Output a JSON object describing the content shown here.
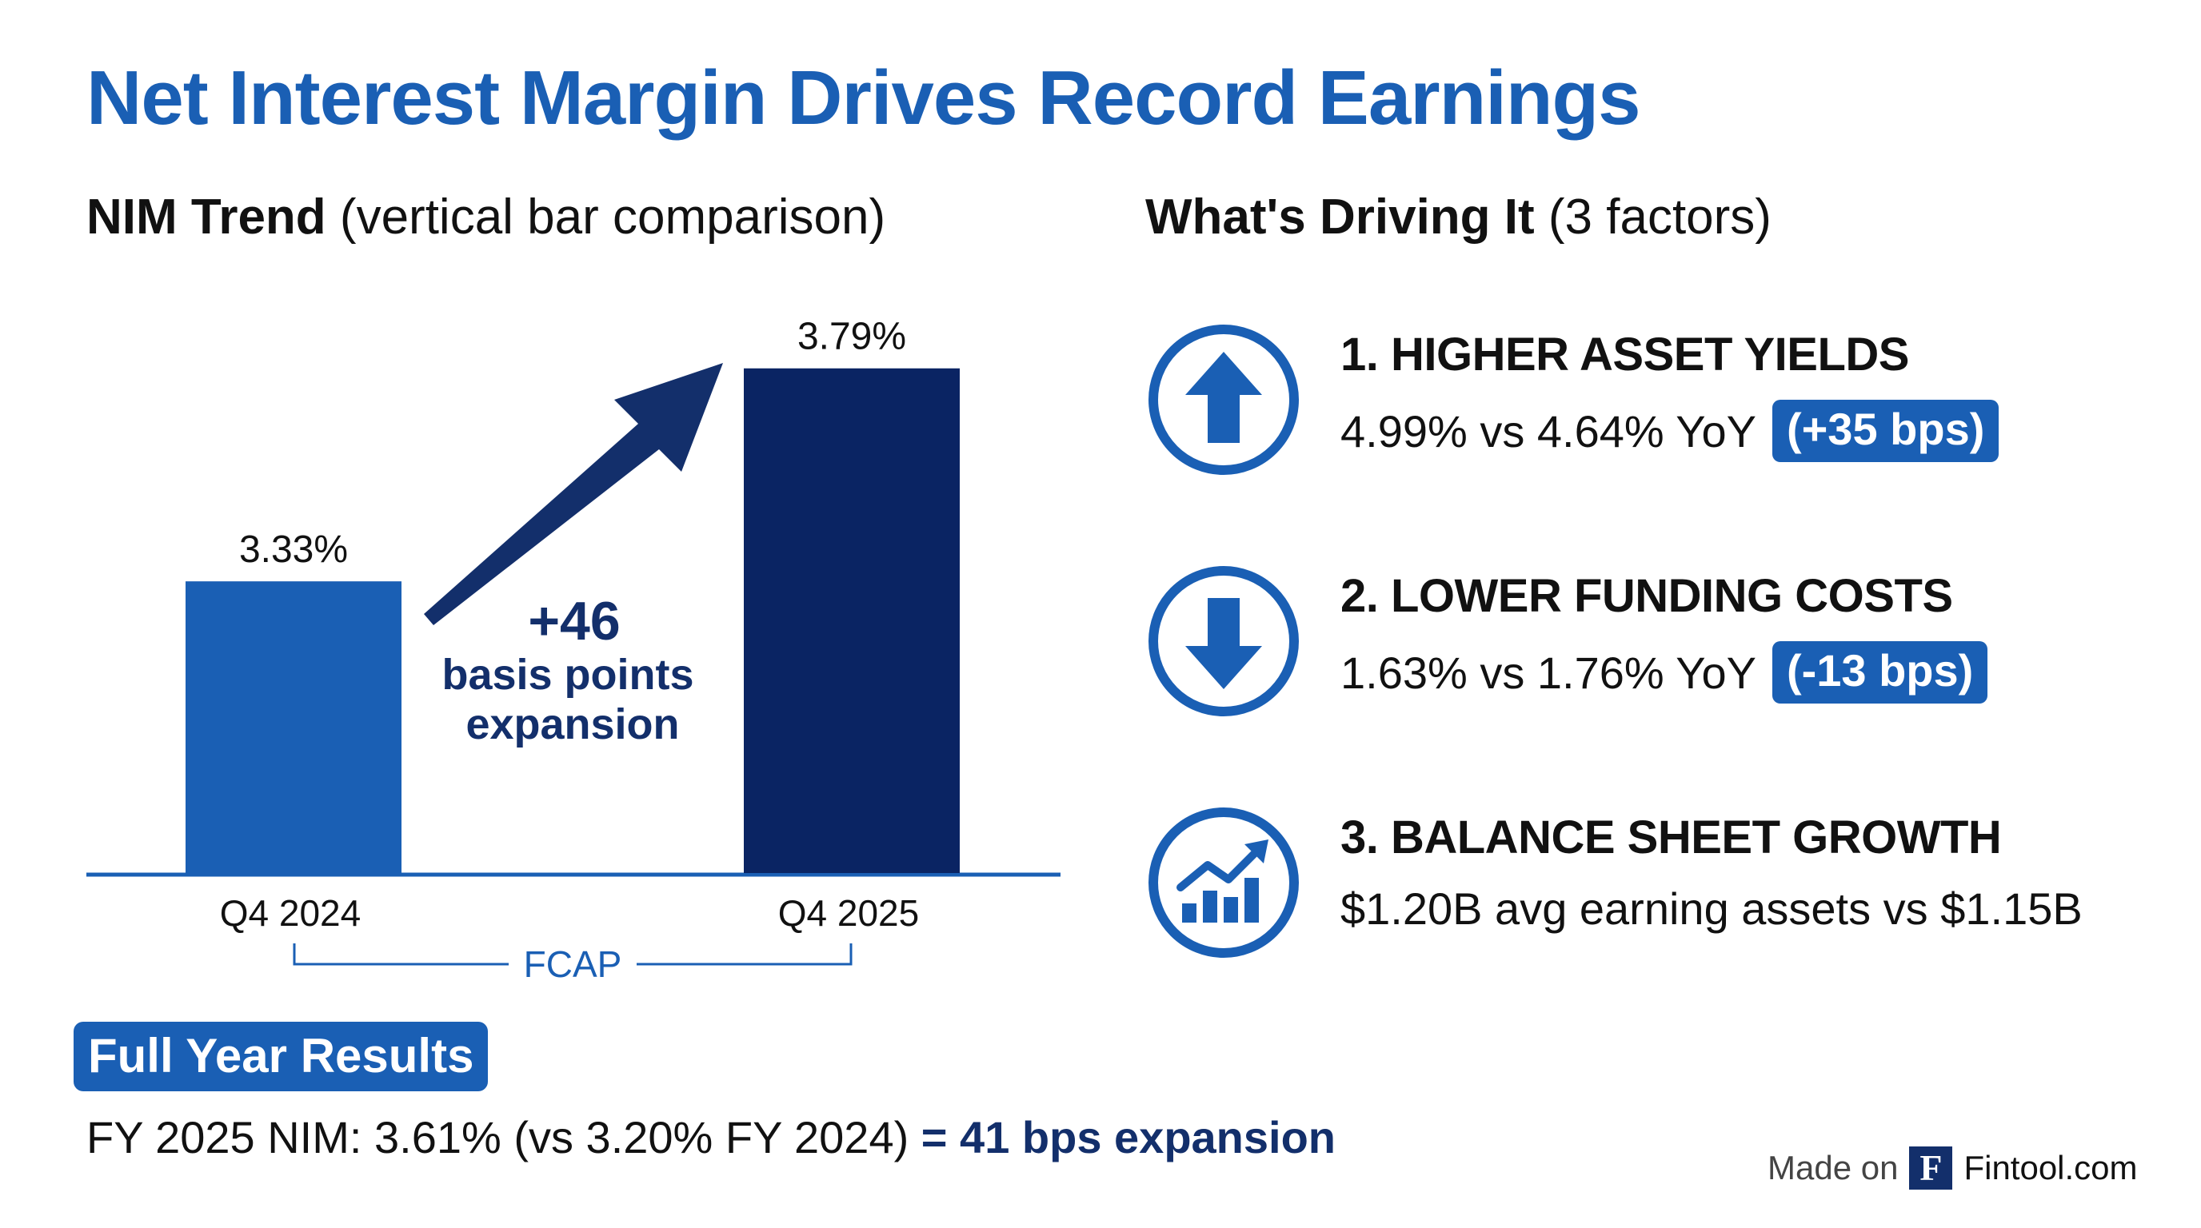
{
  "title": "Net Interest Margin Drives Record Earnings",
  "nim_section": {
    "heading_bold": "NIM Trend",
    "heading_light": "(vertical bar comparison)"
  },
  "chart_data": {
    "type": "bar",
    "title": "NIM Trend",
    "categories": [
      "Q4 2024",
      "Q4 2025"
    ],
    "values": [
      3.33,
      3.79
    ],
    "value_labels": [
      "3.33%",
      "3.79%"
    ],
    "unit": "%",
    "ylim": [
      2.7,
      3.85
    ],
    "colors": [
      "#1a5fb4",
      "#0a2463"
    ],
    "annotation": {
      "value": "+46",
      "line1": "basis points",
      "line2": "expansion"
    },
    "bracket_label": "FCAP",
    "grid": false
  },
  "drivers_section": {
    "heading_bold": "What's Driving It",
    "heading_light": "(3 factors)"
  },
  "factors": [
    {
      "icon": "arrow-up-icon",
      "title": "1. HIGHER ASSET YIELDS",
      "desc": "4.99% vs 4.64% YoY",
      "badge": "(+35 bps)"
    },
    {
      "icon": "arrow-down-icon",
      "title": "2. LOWER FUNDING COSTS",
      "desc": "1.63% vs 1.76% YoY",
      "badge": "(-13 bps)"
    },
    {
      "icon": "growth-chart-icon",
      "title": "3. BALANCE SHEET GROWTH",
      "desc": "$1.20B avg earning assets vs $1.15B",
      "badge": ""
    }
  ],
  "full_year": {
    "badge": "Full Year Results",
    "line": "FY 2025 NIM: 3.61% (vs 3.20% FY 2024)",
    "highlight": "= 41 bps expansion"
  },
  "footer": {
    "made_on": "Made on",
    "logo_letter": "F",
    "brand": "Fintool.com"
  },
  "colors": {
    "accent": "#1a5fb4",
    "dark": "#0a2463",
    "text": "#111111"
  }
}
